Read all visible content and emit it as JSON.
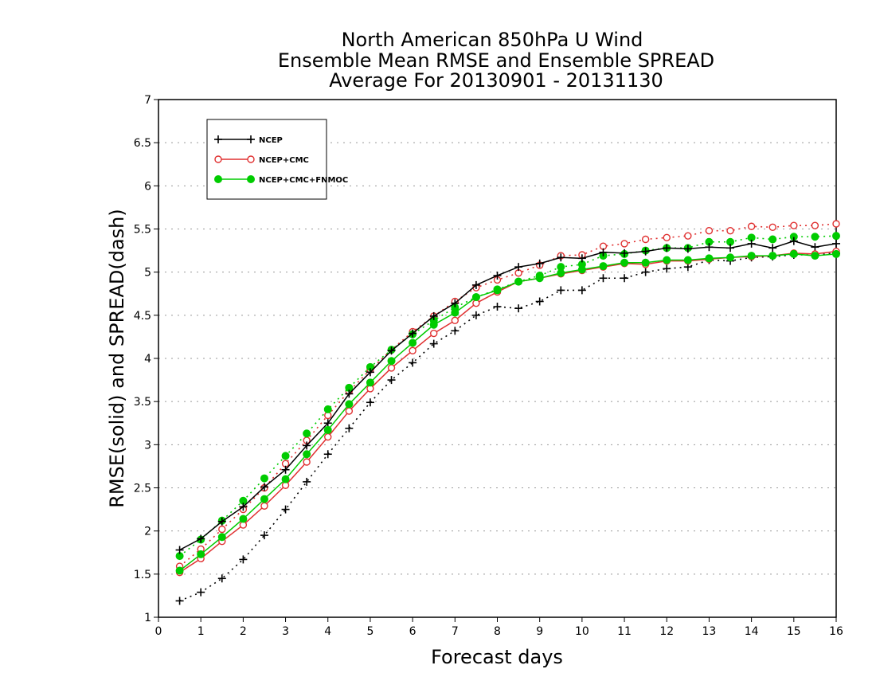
{
  "chart_data": {
    "type": "line",
    "title": [
      "North American 850hPa U Wind",
      "Ensemble Mean RMSE and Ensemble SPREAD",
      "Average For 20130901 - 20131130"
    ],
    "xlabel": "Forecast days",
    "ylabel": "RMSE(solid) and SPREAD(dash)",
    "xlim": [
      0,
      16
    ],
    "ylim": [
      1,
      7
    ],
    "xticks": [
      "0",
      "1",
      "2",
      "3",
      "4",
      "5",
      "6",
      "7",
      "8",
      "9",
      "10",
      "11",
      "12",
      "13",
      "14",
      "15",
      "16"
    ],
    "yticks": [
      "1",
      "1.5",
      "2",
      "2.5",
      "3",
      "3.5",
      "4",
      "4.5",
      "5",
      "5.5",
      "6",
      "6.5",
      "7"
    ],
    "grid": "horizontal dotted",
    "legend_position": "top-left",
    "x": [
      0.5,
      1,
      1.5,
      2,
      2.5,
      3,
      3.5,
      4,
      4.5,
      5,
      5.5,
      6,
      6.5,
      7,
      7.5,
      8,
      8.5,
      9,
      9.5,
      10,
      10.5,
      11,
      11.5,
      12,
      12.5,
      13,
      13.5,
      14,
      14.5,
      15,
      15.5,
      16
    ],
    "series": [
      {
        "name": "NCEP",
        "metric": "RMSE",
        "style": "solid",
        "marker": "plus",
        "color": "#000000",
        "values": [
          1.78,
          1.91,
          2.11,
          2.28,
          2.51,
          2.71,
          2.99,
          3.25,
          3.59,
          3.84,
          4.09,
          4.29,
          4.49,
          4.64,
          4.85,
          4.96,
          5.06,
          5.1,
          5.17,
          5.16,
          5.23,
          5.22,
          5.24,
          5.28,
          5.27,
          5.29,
          5.28,
          5.33,
          5.28,
          5.36,
          5.29,
          5.33
        ]
      },
      {
        "name": "NCEP",
        "metric": "SPREAD",
        "style": "dash",
        "marker": "plus",
        "color": "#000000",
        "values": [
          1.19,
          1.29,
          1.45,
          1.67,
          1.95,
          2.25,
          2.57,
          2.89,
          3.19,
          3.49,
          3.75,
          3.95,
          4.17,
          4.32,
          4.5,
          4.6,
          4.58,
          4.66,
          4.79,
          4.79,
          4.93,
          4.93,
          5.0,
          5.04,
          5.06,
          5.14,
          5.13,
          5.17,
          5.18,
          5.2,
          5.2,
          5.22
        ]
      },
      {
        "name": "NCEP+CMC",
        "metric": "RMSE",
        "style": "solid",
        "marker": "open-circle",
        "color": "#e03030",
        "values": [
          1.52,
          1.68,
          1.88,
          2.07,
          2.29,
          2.53,
          2.8,
          3.09,
          3.39,
          3.65,
          3.89,
          4.09,
          4.29,
          4.44,
          4.64,
          4.77,
          4.89,
          4.93,
          4.98,
          5.02,
          5.06,
          5.1,
          5.09,
          5.13,
          5.13,
          5.15,
          5.17,
          5.18,
          5.19,
          5.22,
          5.21,
          5.24
        ]
      },
      {
        "name": "NCEP+CMC",
        "metric": "SPREAD",
        "style": "dash",
        "marker": "open-circle",
        "color": "#e03030",
        "values": [
          1.59,
          1.79,
          2.02,
          2.25,
          2.5,
          2.78,
          3.05,
          3.34,
          3.62,
          3.87,
          4.1,
          4.31,
          4.49,
          4.66,
          4.82,
          4.91,
          4.99,
          5.08,
          5.19,
          5.2,
          5.3,
          5.33,
          5.38,
          5.4,
          5.42,
          5.48,
          5.48,
          5.53,
          5.52,
          5.54,
          5.54,
          5.56
        ]
      },
      {
        "name": "NCEP+CMC+FNMOC",
        "metric": "RMSE",
        "style": "solid",
        "marker": "filled-circle",
        "color": "#00cc00",
        "values": [
          1.54,
          1.73,
          1.93,
          2.14,
          2.37,
          2.6,
          2.89,
          3.17,
          3.47,
          3.72,
          3.97,
          4.18,
          4.39,
          4.53,
          4.71,
          4.79,
          4.89,
          4.93,
          4.99,
          5.03,
          5.07,
          5.11,
          5.11,
          5.14,
          5.14,
          5.16,
          5.17,
          5.19,
          5.19,
          5.21,
          5.19,
          5.21
        ]
      },
      {
        "name": "NCEP+CMC+FNMOC",
        "metric": "SPREAD",
        "style": "dash",
        "marker": "filled-circle",
        "color": "#00cc00",
        "values": [
          1.71,
          1.9,
          2.12,
          2.35,
          2.61,
          2.87,
          3.13,
          3.41,
          3.66,
          3.9,
          4.1,
          4.28,
          4.44,
          4.59,
          4.71,
          4.8,
          4.89,
          4.96,
          5.06,
          5.09,
          5.19,
          5.21,
          5.25,
          5.28,
          5.28,
          5.35,
          5.35,
          5.4,
          5.38,
          5.41,
          5.41,
          5.42
        ]
      }
    ]
  }
}
